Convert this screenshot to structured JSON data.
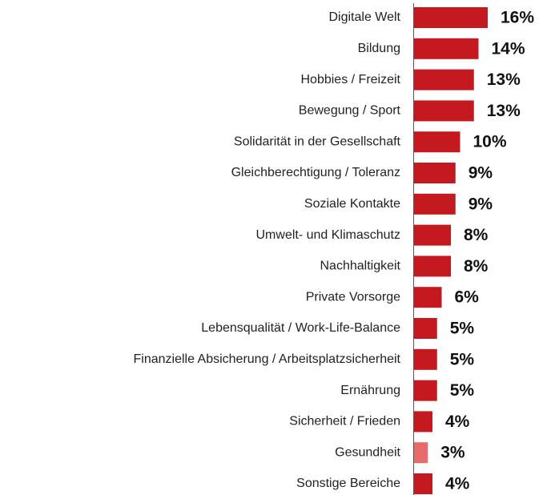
{
  "chart_data": {
    "type": "bar",
    "orientation": "horizontal",
    "categories": [
      "Digitale Welt",
      "Bildung",
      "Hobbies / Freizeit",
      "Bewegung / Sport",
      "Solidarität in der Gesellschaft",
      "Gleichberechtigung / Toleranz",
      "Soziale Kontakte",
      "Umwelt- und Klimaschutz",
      "Nachhaltigkeit",
      "Private Vorsorge",
      "Lebensqualität / Work-Life-Balance",
      "Finanzielle Absicherung / Arbeitsplatzsicherheit",
      "Ernährung",
      "Sicherheit / Frieden",
      "Gesundheit",
      "Sonstige Bereiche"
    ],
    "values": [
      16,
      14,
      13,
      13,
      10,
      9,
      9,
      8,
      8,
      6,
      5,
      5,
      5,
      4,
      3,
      4
    ],
    "value_labels": [
      "16%",
      "14%",
      "13%",
      "13%",
      "10%",
      "9%",
      "9%",
      "8%",
      "8%",
      "6%",
      "5%",
      "5%",
      "5%",
      "4%",
      "3%",
      "4%"
    ],
    "colors": [
      "#c41a1f",
      "#c41a1f",
      "#c41a1f",
      "#c41a1f",
      "#c41a1f",
      "#c41a1f",
      "#c41a1f",
      "#c41a1f",
      "#c41a1f",
      "#c41a1f",
      "#c41a1f",
      "#c41a1f",
      "#c41a1f",
      "#c41a1f",
      "#e86b6b",
      "#c41a1f"
    ]
  }
}
